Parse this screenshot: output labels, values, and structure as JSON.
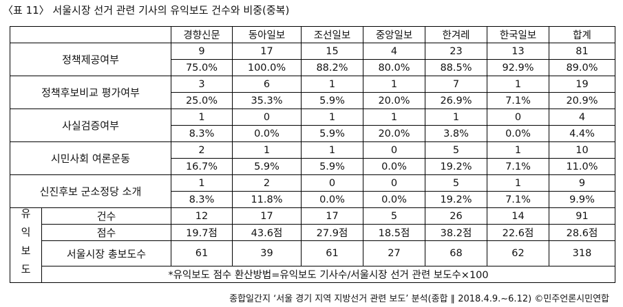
{
  "title": "〈표 11〉 서울시장 선거 관련 기사의 유익보도 건수와 비중(중복)",
  "table": {
    "header": [
      "경향신문",
      "동아일보",
      "조선일보",
      "중앙일보",
      "한겨레",
      "한국일보",
      "합계"
    ],
    "groups": [
      {
        "label": "정책제공여부",
        "counts": [
          "9",
          "17",
          "15",
          "4",
          "23",
          "13",
          "81"
        ],
        "percents": [
          "75.0%",
          "100.0%",
          "88.2%",
          "80.0%",
          "88.5%",
          "92.9%",
          "89.0%"
        ]
      },
      {
        "label": "정책후보비교 평가여부",
        "counts": [
          "3",
          "6",
          "1",
          "1",
          "7",
          "1",
          "19"
        ],
        "percents": [
          "25.0%",
          "35.3%",
          "5.9%",
          "20.0%",
          "26.9%",
          "7.1%",
          "20.9%"
        ]
      },
      {
        "label": "사실검증여부",
        "counts": [
          "1",
          "0",
          "1",
          "1",
          "1",
          "0",
          "4"
        ],
        "percents": [
          "8.3%",
          "0.0%",
          "5.9%",
          "20.0%",
          "3.8%",
          "0.0%",
          "4.4%"
        ]
      },
      {
        "label": "시민사회 여론운동",
        "counts": [
          "2",
          "1",
          "1",
          "0",
          "5",
          "1",
          "10"
        ],
        "percents": [
          "16.7%",
          "5.9%",
          "5.9%",
          "0.0%",
          "19.2%",
          "7.1%",
          "11.0%"
        ]
      },
      {
        "label": "신진후보 군소정당 소개",
        "counts": [
          "1",
          "2",
          "0",
          "0",
          "5",
          "1",
          "9"
        ],
        "percents": [
          "8.3%",
          "11.8%",
          "0.0%",
          "0.0%",
          "19.2%",
          "7.1%",
          "9.9%"
        ]
      }
    ],
    "section_label": "유익보도",
    "section_rows": [
      {
        "label": "건수",
        "cells": [
          "12",
          "17",
          "17",
          "5",
          "26",
          "14",
          "91"
        ]
      },
      {
        "label": "점수",
        "cells": [
          "19.7점",
          "43.6점",
          "27.9점",
          "18.5점",
          "38.2점",
          "22.6점",
          "28.6점"
        ]
      },
      {
        "label": "서울시장 총보도수",
        "cells": [
          "61",
          "39",
          "61",
          "27",
          "68",
          "62",
          "318"
        ]
      }
    ],
    "note": "*유익보도 점수 환산방법=유익보도 기사수/서울시장 선거 관련 보도수×100"
  },
  "source": "종합일간지 ‘서울 경기 지역 지방선거 관련 보도’ 분석(종합 ∥ 2018.4.9.~6.12) ©민주언론시민연합"
}
